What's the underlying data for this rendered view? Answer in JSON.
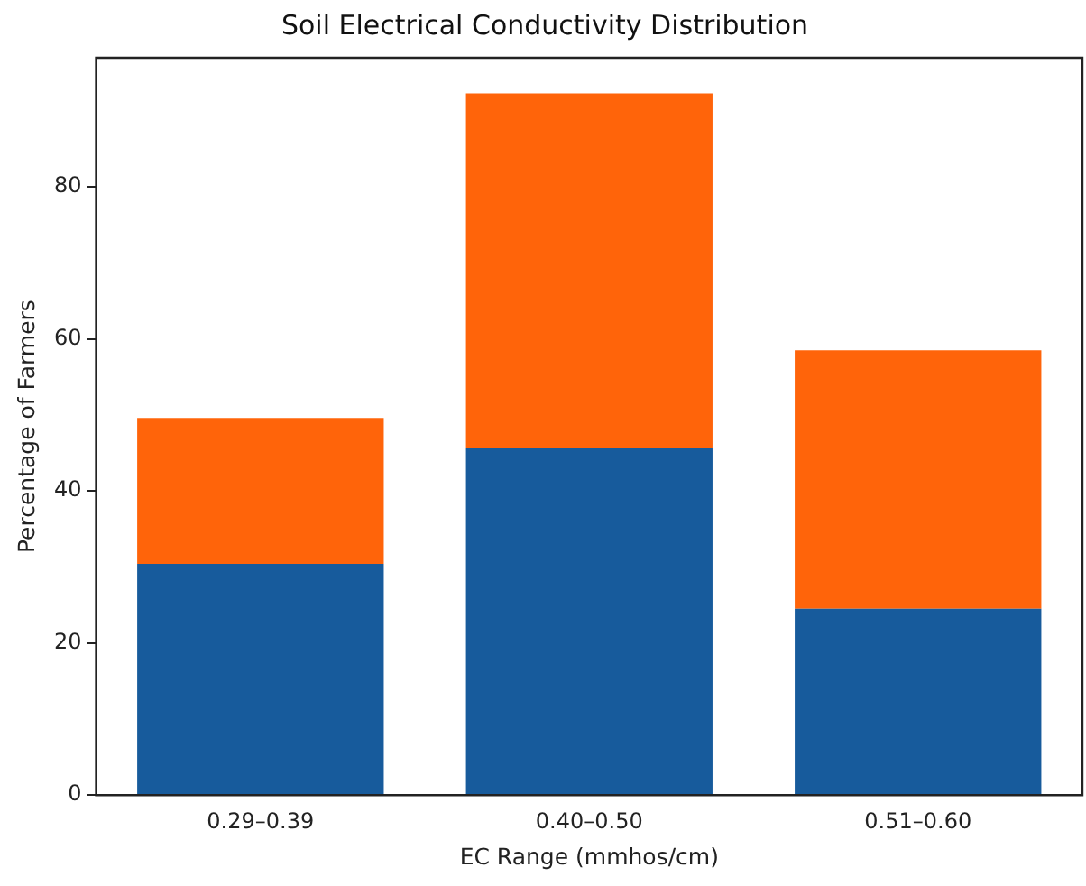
{
  "chart_data": {
    "type": "bar",
    "title": "Soil Electrical Conductivity Distribution",
    "xlabel": "EC Range (mmhos/cm)",
    "ylabel": "Percentage of Farmers",
    "categories": [
      "0.29–0.39",
      "0.40–0.50",
      "0.51–0.60"
    ],
    "stacked": true,
    "series": [
      {
        "color": "#175b9c",
        "values": [
          30.4,
          45.7,
          24.5
        ]
      },
      {
        "color": "#ff640a",
        "values": [
          19.2,
          46.6,
          34.0
        ]
      }
    ],
    "ylim": [
      0,
      97
    ],
    "yticks": [
      0,
      20,
      40,
      60,
      80
    ],
    "grid": false,
    "legend": false
  }
}
